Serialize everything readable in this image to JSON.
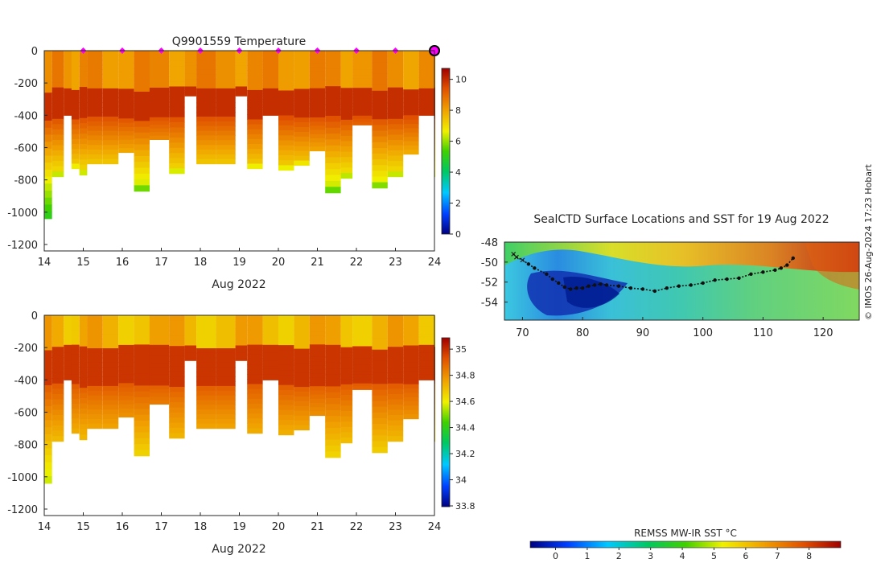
{
  "chart_data": [
    {
      "type": "heatmap",
      "title": "Q9901559  Temperature",
      "xlabel": "Aug 2022",
      "ylabel": "",
      "xlim": [
        14,
        24
      ],
      "ylim": [
        -1240,
        0
      ],
      "x_ticks": [
        "14",
        "15",
        "16",
        "17",
        "18",
        "19",
        "20",
        "21",
        "22",
        "23",
        "24"
      ],
      "y_ticks": [
        "0",
        "-200",
        "-400",
        "-600",
        "-800",
        "-1000",
        "-1200"
      ],
      "colorbar": {
        "min": 0,
        "max": 10.5,
        "ticks": [
          "0",
          "2",
          "4",
          "6",
          "8",
          "10"
        ]
      },
      "profile_days": [
        14.0,
        14.2,
        14.5,
        14.7,
        14.9,
        15.1,
        15.5,
        15.9,
        16.3,
        16.7,
        17.2,
        17.6,
        17.9,
        18.4,
        18.9,
        19.2,
        19.6,
        20.0,
        20.4,
        20.8,
        21.2,
        21.6,
        21.9,
        22.4,
        22.8,
        23.2,
        23.6,
        24.0
      ],
      "profile_depths": [
        -1040,
        -780,
        -400,
        -730,
        -770,
        -700,
        -700,
        -630,
        -870,
        -550,
        -760,
        -280,
        -700,
        -700,
        -280,
        -730,
        -400,
        -740,
        -710,
        -620,
        -880,
        -790,
        -460,
        -850,
        -780,
        -640,
        -400,
        -780
      ],
      "daily_markers": [
        15,
        16,
        17,
        18,
        19,
        20,
        21,
        22,
        23
      ],
      "current_marker": 24
    },
    {
      "type": "heatmap",
      "title": "",
      "xlabel": "Aug 2022",
      "ylabel": "",
      "xlim": [
        14,
        24
      ],
      "ylim": [
        -1240,
        0
      ],
      "x_ticks": [
        "14",
        "15",
        "16",
        "17",
        "18",
        "19",
        "20",
        "21",
        "22",
        "23",
        "24"
      ],
      "y_ticks": [
        "0",
        "-200",
        "-400",
        "-600",
        "-800",
        "-1000",
        "-1200"
      ],
      "colorbar": {
        "min": 33.8,
        "max": 35.05,
        "ticks": [
          "33.8",
          "34",
          "34.2",
          "34.4",
          "34.6",
          "34.8",
          "35"
        ]
      }
    },
    {
      "type": "heatmap",
      "title": "SealCTD Surface Locations and SST for 19 Aug 2022",
      "xlabel": "",
      "ylabel": "",
      "xlim": [
        67,
        126
      ],
      "ylim": [
        -55.8,
        -48
      ],
      "x_ticks": [
        "70",
        "80",
        "90",
        "100",
        "110",
        "120"
      ],
      "y_ticks": [
        "-48",
        "-50",
        "-52",
        "-54"
      ],
      "track_lon": [
        68.5,
        69,
        70,
        71,
        72,
        74,
        75,
        76,
        77,
        78,
        79,
        80,
        81,
        82,
        83,
        84,
        86,
        88,
        90,
        92,
        94,
        96,
        98,
        100,
        102,
        104,
        106,
        108,
        110,
        112,
        113,
        114,
        115
      ],
      "track_lat": [
        -49.2,
        -49.5,
        -49.8,
        -50.2,
        -50.6,
        -51.2,
        -51.7,
        -52.1,
        -52.5,
        -52.7,
        -52.6,
        -52.6,
        -52.4,
        -52.3,
        -52.2,
        -52.3,
        -52.4,
        -52.6,
        -52.7,
        -52.9,
        -52.6,
        -52.4,
        -52.3,
        -52.1,
        -51.8,
        -51.7,
        -51.6,
        -51.2,
        -51.0,
        -50.8,
        -50.6,
        -50.3,
        -49.6
      ],
      "colorbar": {
        "label": "REMSS MW-IR SST °C",
        "min": -0.8,
        "max": 9,
        "ticks": [
          "0",
          "1",
          "2",
          "3",
          "4",
          "5",
          "6",
          "7",
          "8"
        ]
      }
    }
  ],
  "credit": "© IMOS 26-Aug-2024 17:23 Hobart"
}
